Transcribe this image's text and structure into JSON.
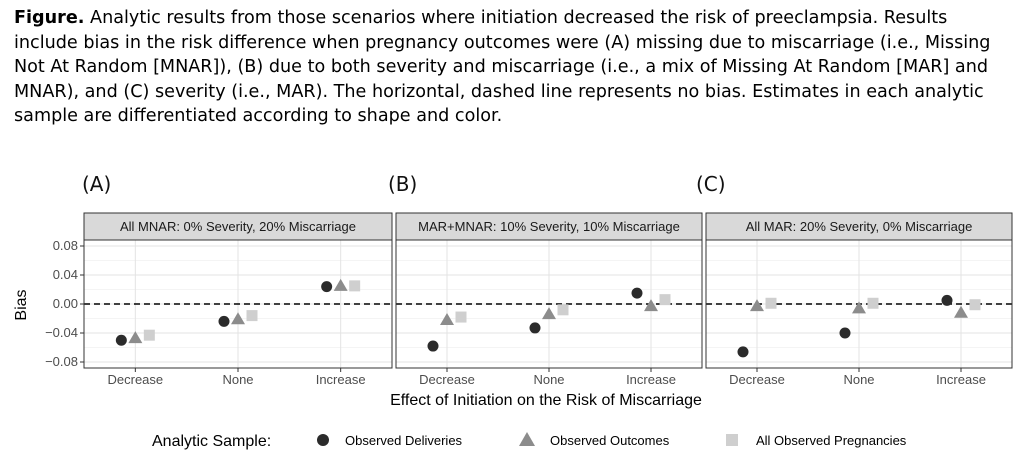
{
  "caption": {
    "label": "Figure.",
    "text": " Analytic results from those scenarios where initiation decreased the risk of preeclampsia. Results include bias in the risk difference when pregnancy outcomes were (A) missing due to miscarriage (i.e., Missing Not At Random [MNAR]), (B) due to both severity and miscarriage (i.e., a mix of Missing At Random [MAR] and MNAR), and (C) severity (i.e., MAR). The horizontal, dashed line represents no bias. Estimates in each analytic sample are differentiated according to shape and color."
  },
  "chart_data": {
    "type": "scatter",
    "xlabel": "Effect of Initiation on the Risk of Miscarriage",
    "ylabel": "Bias",
    "ylim": [
      -0.08,
      0.08
    ],
    "yticks": [
      -0.08,
      -0.04,
      0.0,
      0.04,
      0.08
    ],
    "ytick_labels": [
      "−0.08",
      "−0.04",
      "0.00",
      "0.04",
      "0.08"
    ],
    "reference_line": {
      "y": 0,
      "style": "dashed"
    },
    "categories": [
      "Decrease",
      "None",
      "Increase"
    ],
    "legend": {
      "title": "Analytic Sample:",
      "position": "bottom"
    },
    "series_styles": [
      {
        "name": "Observed Deliveries",
        "shape": "circle",
        "color": "#2b2b2b"
      },
      {
        "name": "Observed Outcomes",
        "shape": "triangle",
        "color": "#8c8c8c"
      },
      {
        "name": "All Observed Pregnancies",
        "shape": "square",
        "color": "#cfcfcf"
      }
    ],
    "panels": [
      {
        "tag": "(A)",
        "strip": "All MNAR: 0% Severity, 20% Miscarriage",
        "series": [
          {
            "name": "Observed Deliveries",
            "values": [
              -0.05,
              -0.024,
              0.024
            ]
          },
          {
            "name": "Observed Outcomes",
            "values": [
              -0.047,
              -0.021,
              0.025
            ]
          },
          {
            "name": "All Observed Pregnancies",
            "values": [
              -0.043,
              -0.016,
              0.025
            ]
          }
        ]
      },
      {
        "tag": "(B)",
        "strip": "MAR+MNAR: 10% Severity, 10% Miscarriage",
        "series": [
          {
            "name": "Observed Deliveries",
            "values": [
              -0.058,
              -0.033,
              0.015
            ]
          },
          {
            "name": "Observed Outcomes",
            "values": [
              -0.022,
              -0.014,
              -0.003
            ]
          },
          {
            "name": "All Observed Pregnancies",
            "values": [
              -0.018,
              -0.008,
              0.006
            ]
          }
        ]
      },
      {
        "tag": "(C)",
        "strip": "All MAR: 20% Severity, 0% Miscarriage",
        "series": [
          {
            "name": "Observed Deliveries",
            "values": [
              -0.066,
              -0.04,
              0.005
            ]
          },
          {
            "name": "Observed Outcomes",
            "values": [
              -0.003,
              -0.006,
              -0.012
            ]
          },
          {
            "name": "All Observed Pregnancies",
            "values": [
              0.001,
              0.001,
              -0.001
            ]
          }
        ]
      }
    ]
  }
}
